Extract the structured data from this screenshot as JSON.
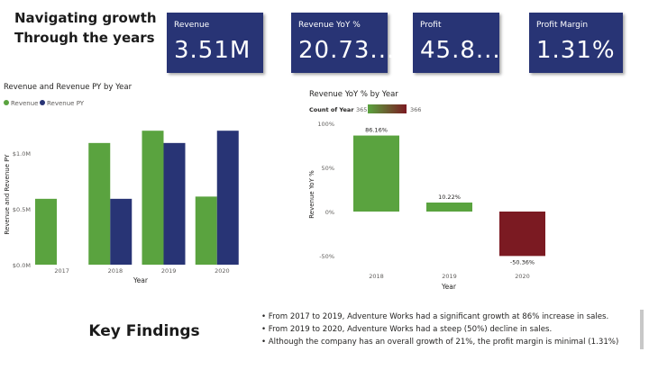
{
  "page": {
    "title_line1": "Navigating growth",
    "title_line2": "Through the years"
  },
  "kpis": [
    {
      "label": "Revenue",
      "value": "3.51M"
    },
    {
      "label": "Revenue YoY %",
      "value": "20.73..."
    },
    {
      "label": "Profit",
      "value": "45.8..."
    },
    {
      "label": "Profit Margin",
      "value": "1.31%"
    }
  ],
  "key_findings": {
    "heading": "Key Findings",
    "items": [
      "• From 2017 to 2019, Adventure Works had a significant growth at 86% increase in sales.",
      "• From 2019 to 2020, Adventure Works had a steep (50%) decline in sales.",
      "• Although the company has an overall growth of 21%, the profit margin is minimal (1.31%)"
    ]
  },
  "colors": {
    "revenue": "#5aa33f",
    "revenue_py": "#283475",
    "kpi_bg": "#283475",
    "yoy_positive": "#5aa33f",
    "yoy_negative": "#7b1a22"
  },
  "chart_data": [
    {
      "type": "bar",
      "title": "Revenue and Revenue PY by Year",
      "xlabel": "Year",
      "ylabel": "Revenue and Revenue PY",
      "categories": [
        "2017",
        "2018",
        "2019",
        "2020"
      ],
      "series": [
        {
          "name": "Revenue",
          "values": [
            0.59,
            1.09,
            1.2,
            0.61
          ]
        },
        {
          "name": "Revenue PY",
          "values": [
            null,
            0.59,
            1.09,
            1.2
          ]
        }
      ],
      "ylim": [
        0,
        1.25
      ],
      "y_ticks": [
        0,
        0.5,
        1.0
      ],
      "y_tick_labels": [
        "$0.0M",
        "$0.5M",
        "$1.0M"
      ],
      "legend_position": "top-left",
      "grid": false
    },
    {
      "type": "bar",
      "title": "Revenue YoY % by Year",
      "xlabel": "Year",
      "ylabel": "Revenue YoY %",
      "categories": [
        "2018",
        "2019",
        "2020"
      ],
      "values": [
        86.16,
        10.22,
        -50.36
      ],
      "data_labels": [
        "86.16%",
        "10.22%",
        "-50.36%"
      ],
      "ylim": [
        -60,
        100
      ],
      "y_ticks": [
        100,
        50,
        0,
        -50
      ],
      "y_tick_labels": [
        "100%",
        "50%",
        "0%",
        "-50%"
      ],
      "color_legend": {
        "label": "Count of Year",
        "min": "365",
        "max": "366"
      },
      "grid": false
    }
  ]
}
